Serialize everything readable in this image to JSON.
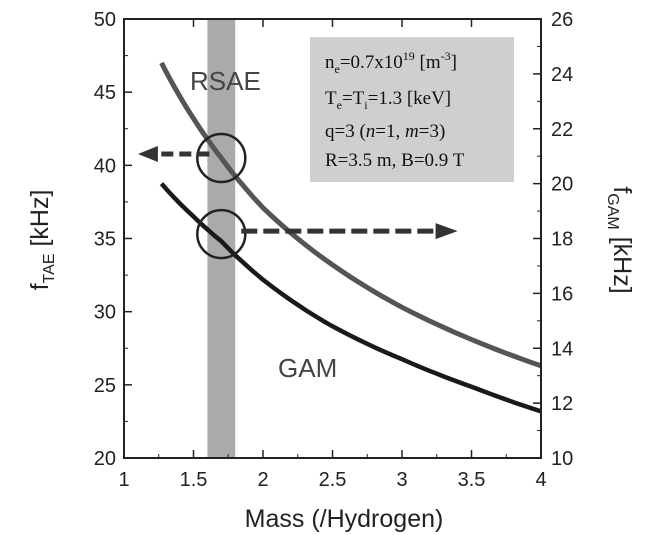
{
  "chart_data": {
    "type": "line",
    "xlabel": "Mass (/Hydrogen)",
    "ylabel_left": {
      "main": "f",
      "sub": "TAE",
      "unit": " [kHz]"
    },
    "ylabel_right": {
      "main": "f",
      "sub": "GAM",
      "unit": " [kHz]"
    },
    "xlim": [
      1,
      4
    ],
    "ylim_left": [
      20,
      50
    ],
    "ylim_right": [
      10,
      26
    ],
    "xticks": [
      "1",
      "1.5",
      "2",
      "2.5",
      "3",
      "3.5",
      "4"
    ],
    "yticks_left": [
      "20",
      "25",
      "30",
      "35",
      "40",
      "45",
      "50"
    ],
    "yticks_right": [
      "10",
      "12",
      "14",
      "16",
      "18",
      "20",
      "22",
      "24",
      "26"
    ],
    "series": [
      {
        "name": "RSAE",
        "axis": "left",
        "color": "#555555",
        "x": [
          1.27,
          1.5,
          1.7,
          2.0,
          2.5,
          3.0,
          3.5,
          4.0
        ],
        "y": [
          47.0,
          43.2,
          40.5,
          37.1,
          33.2,
          30.3,
          28.1,
          26.3
        ]
      },
      {
        "name": "GAM",
        "axis": "right",
        "color": "#1a1a1a",
        "x": [
          1.27,
          1.5,
          1.7,
          2.0,
          2.5,
          3.0,
          3.5,
          4.0
        ],
        "y": [
          20.0,
          18.8,
          17.9,
          16.5,
          14.8,
          13.6,
          12.6,
          11.7
        ]
      }
    ],
    "band": {
      "x": [
        1.6,
        1.8
      ],
      "color": "#aaaaaa"
    },
    "markers": [
      {
        "x": 1.7,
        "y_left": 40.5,
        "arrow_to_x": 1.1,
        "direction": "left"
      },
      {
        "x": 1.7,
        "y_left": 35.3,
        "arrow_to_x": 3.4,
        "direction": "right"
      }
    ],
    "param_box": {
      "line1": {
        "a": "n",
        "a_sub": "e",
        "b": "=0.7x10",
        "b_sup": "19",
        "c": " [m",
        "c_sup": "-3",
        "d": "]"
      },
      "line2": {
        "a": "T",
        "a_sub": "e",
        "b": "=T",
        "b_sub": "i",
        "c": "=1.3 [keV]"
      },
      "line3": {
        "a": "q=3 (",
        "n": "n",
        "b": "=1, ",
        "m": "m",
        "c": "=3)"
      },
      "line4": "R=3.5 m, B=0.9 T"
    }
  }
}
